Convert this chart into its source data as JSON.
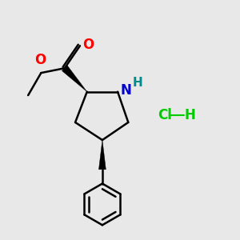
{
  "background_color": "#e8e8e8",
  "bond_color": "#000000",
  "bond_width": 1.8,
  "figsize": [
    3.0,
    3.0
  ],
  "dpi": 100,
  "xlim": [
    0,
    10
  ],
  "ylim": [
    0,
    10
  ],
  "colors": {
    "O": "#ff0000",
    "N": "#0000cd",
    "H_N": "#008b8b",
    "Cl": "#00cc00",
    "C": "#000000"
  },
  "font_size_atoms": 12,
  "font_size_H": 11,
  "font_size_hcl": 12
}
